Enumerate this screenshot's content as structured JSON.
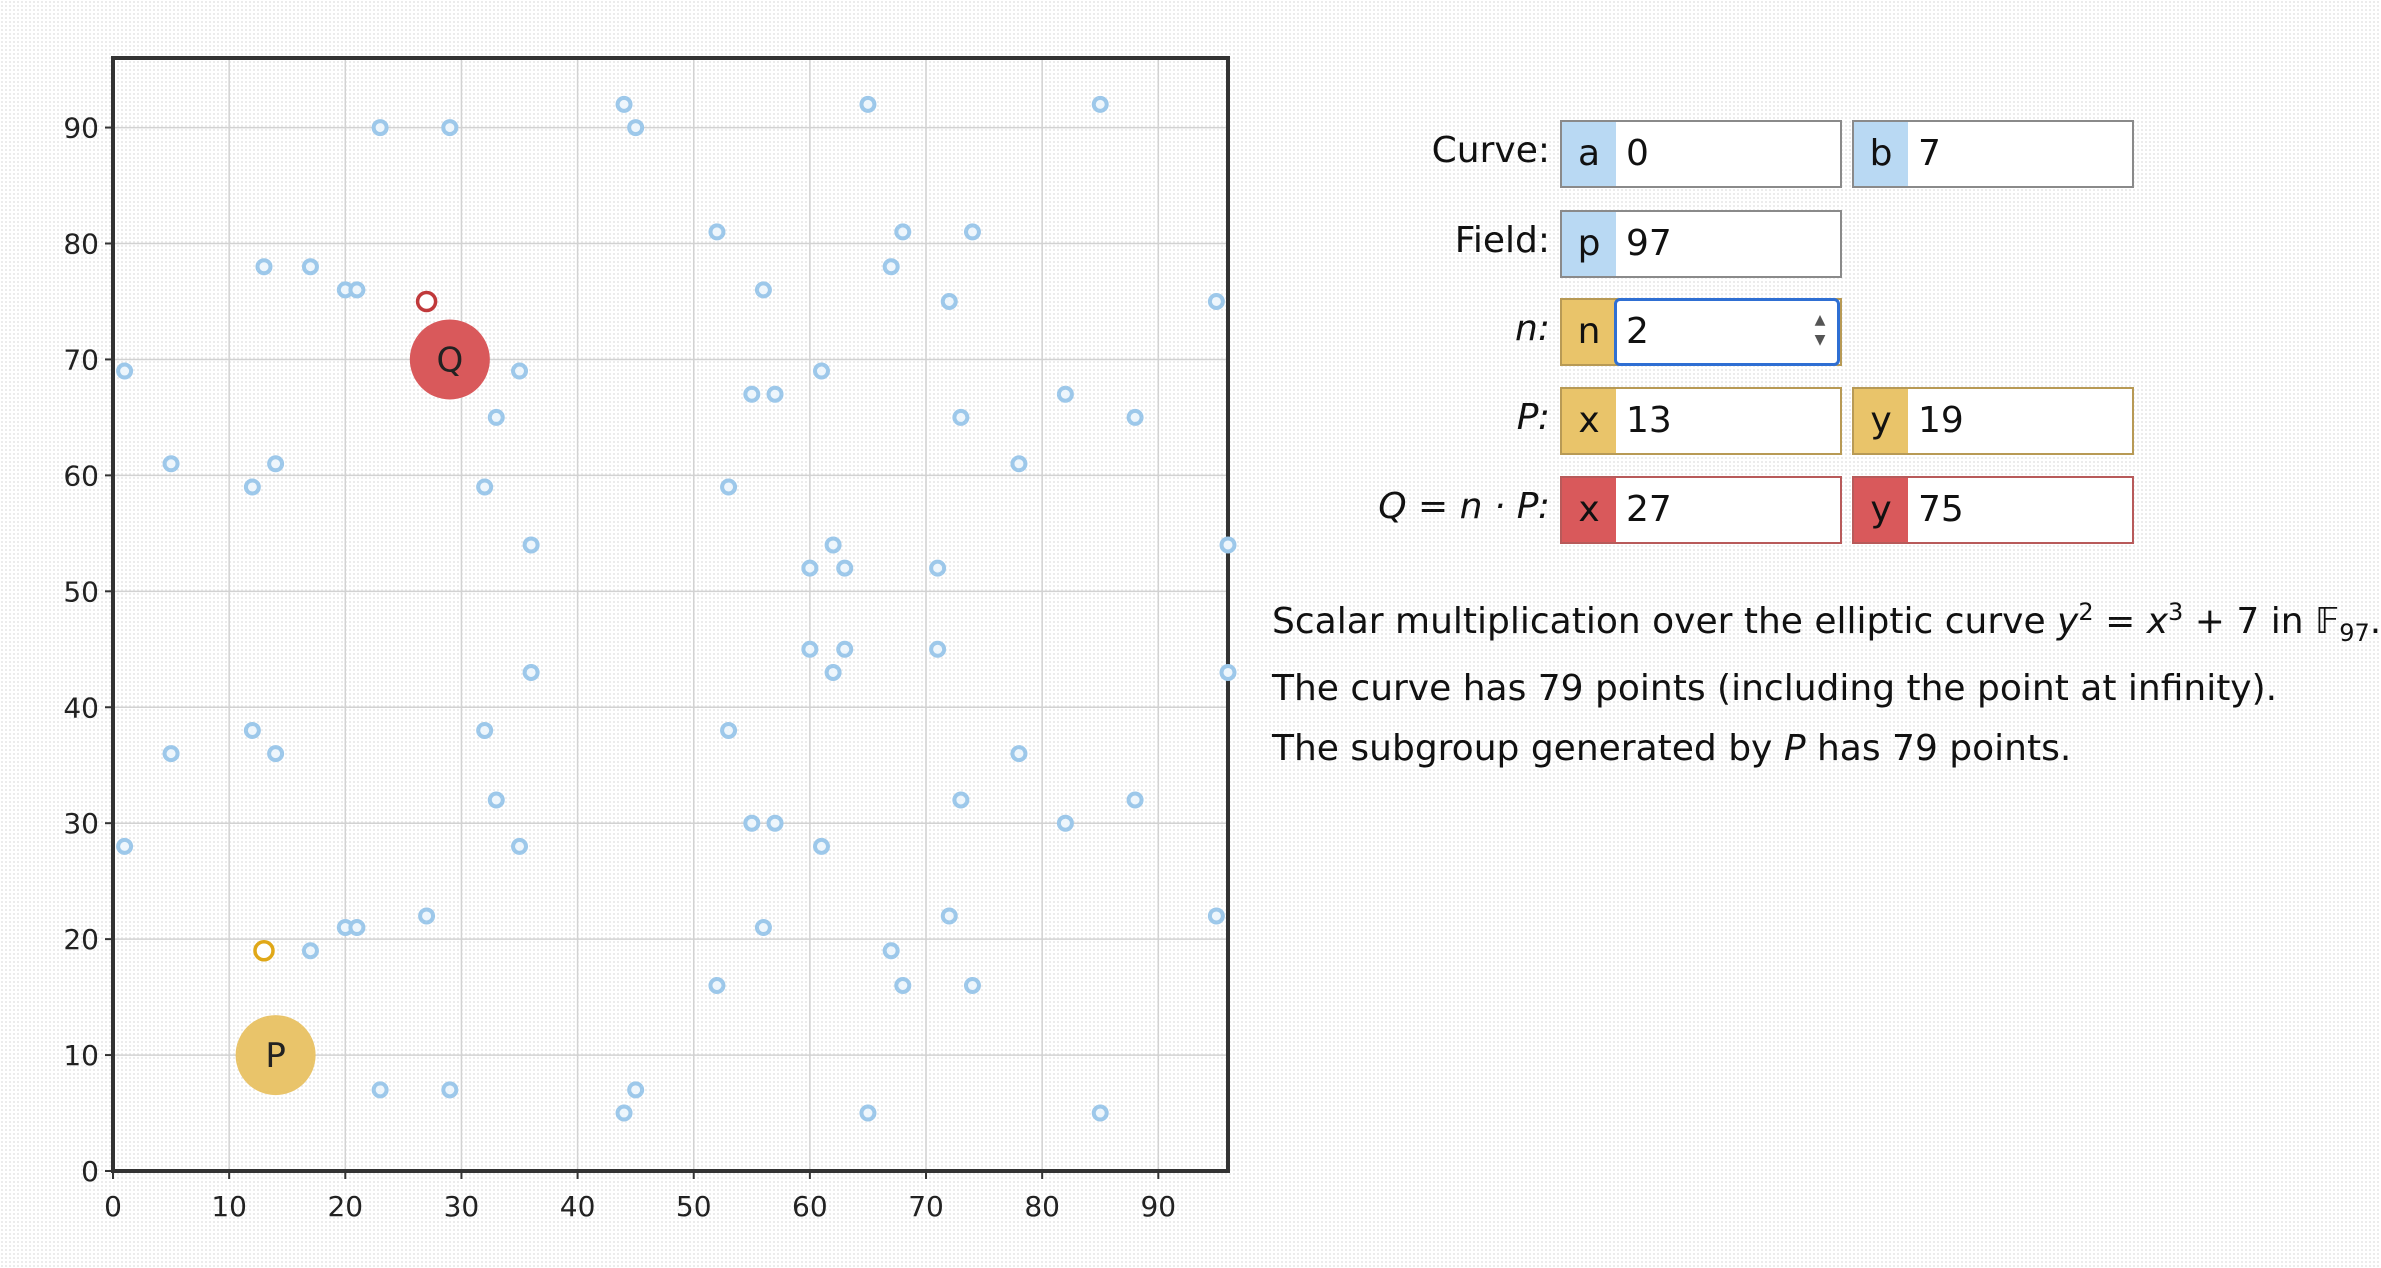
{
  "chart_data": {
    "type": "scatter",
    "title": "",
    "xlabel": "",
    "ylabel": "",
    "xlim": [
      0,
      96
    ],
    "ylim": [
      0,
      96
    ],
    "xticks": [
      0,
      10,
      20,
      30,
      40,
      50,
      60,
      70,
      80,
      90
    ],
    "yticks": [
      0,
      10,
      20,
      30,
      40,
      50,
      60,
      70,
      80,
      90
    ],
    "grid": true,
    "points": [
      [
        1,
        28
      ],
      [
        1,
        69
      ],
      [
        5,
        36
      ],
      [
        5,
        61
      ],
      [
        12,
        38
      ],
      [
        12,
        59
      ],
      [
        13,
        19
      ],
      [
        13,
        78
      ],
      [
        14,
        36
      ],
      [
        14,
        61
      ],
      [
        17,
        19
      ],
      [
        17,
        78
      ],
      [
        20,
        21
      ],
      [
        20,
        76
      ],
      [
        21,
        21
      ],
      [
        21,
        76
      ],
      [
        23,
        7
      ],
      [
        23,
        90
      ],
      [
        27,
        22
      ],
      [
        27,
        75
      ],
      [
        29,
        7
      ],
      [
        29,
        90
      ],
      [
        32,
        38
      ],
      [
        32,
        59
      ],
      [
        33,
        32
      ],
      [
        33,
        65
      ],
      [
        35,
        28
      ],
      [
        35,
        69
      ],
      [
        36,
        43
      ],
      [
        36,
        54
      ],
      [
        44,
        5
      ],
      [
        44,
        92
      ],
      [
        45,
        7
      ],
      [
        45,
        90
      ],
      [
        52,
        16
      ],
      [
        52,
        81
      ],
      [
        53,
        38
      ],
      [
        53,
        59
      ],
      [
        55,
        30
      ],
      [
        55,
        67
      ],
      [
        56,
        21
      ],
      [
        56,
        76
      ],
      [
        57,
        30
      ],
      [
        57,
        67
      ],
      [
        60,
        45
      ],
      [
        60,
        52
      ],
      [
        61,
        28
      ],
      [
        61,
        69
      ],
      [
        62,
        43
      ],
      [
        62,
        54
      ],
      [
        63,
        45
      ],
      [
        63,
        52
      ],
      [
        65,
        5
      ],
      [
        65,
        92
      ],
      [
        67,
        19
      ],
      [
        67,
        78
      ],
      [
        68,
        16
      ],
      [
        68,
        81
      ],
      [
        71,
        45
      ],
      [
        71,
        52
      ],
      [
        72,
        22
      ],
      [
        72,
        75
      ],
      [
        73,
        32
      ],
      [
        73,
        65
      ],
      [
        74,
        16
      ],
      [
        74,
        81
      ],
      [
        78,
        36
      ],
      [
        78,
        61
      ],
      [
        82,
        30
      ],
      [
        82,
        67
      ],
      [
        85,
        5
      ],
      [
        85,
        92
      ],
      [
        88,
        32
      ],
      [
        88,
        65
      ],
      [
        95,
        22
      ],
      [
        95,
        75
      ],
      [
        96,
        43
      ],
      [
        96,
        54
      ]
    ],
    "point_color": "#9dc8ea",
    "P": {
      "label": "P",
      "x": 13,
      "y": 19,
      "marker_x": 14,
      "marker_y": 10,
      "color": "#e9c46a",
      "ring_color": "#e0a818"
    },
    "Q": {
      "label": "Q",
      "x": 27,
      "y": 75,
      "marker_x": 29,
      "marker_y": 70,
      "color": "#d9595b",
      "ring_color": "#c0393b"
    }
  },
  "form": {
    "curve_label": "Curve:",
    "a_tag": "a",
    "a_value": "0",
    "b_tag": "b",
    "b_value": "7",
    "field_label": "Field:",
    "p_tag": "p",
    "p_value": "97",
    "n_label": "n:",
    "n_tag": "n",
    "n_value": "2",
    "P_label": "P:",
    "Px_tag": "x",
    "Px_value": "13",
    "Py_tag": "y",
    "Py_value": "19",
    "Q_label": "Q = n · P:",
    "Qx_tag": "x",
    "Qx_value": "27",
    "Qy_tag": "y",
    "Qy_value": "75"
  },
  "description": {
    "line1_prefix": "Scalar multiplication over the elliptic curve ",
    "line1_eq_y": "y",
    "line1_exp2": "2",
    "line1_eq_mid": " = ",
    "line1_eq_x": "x",
    "line1_exp3": "3",
    "line1_eq_rest": " + 7 in ",
    "line1_field": "𝔽",
    "line1_field_sub": "97",
    "line1_end": ".",
    "line2": "The curve has 79 points (including the point at infinity).",
    "line3_prefix": "The subgroup generated by ",
    "line3_var": "P",
    "line3_suffix": " has 79 points."
  }
}
